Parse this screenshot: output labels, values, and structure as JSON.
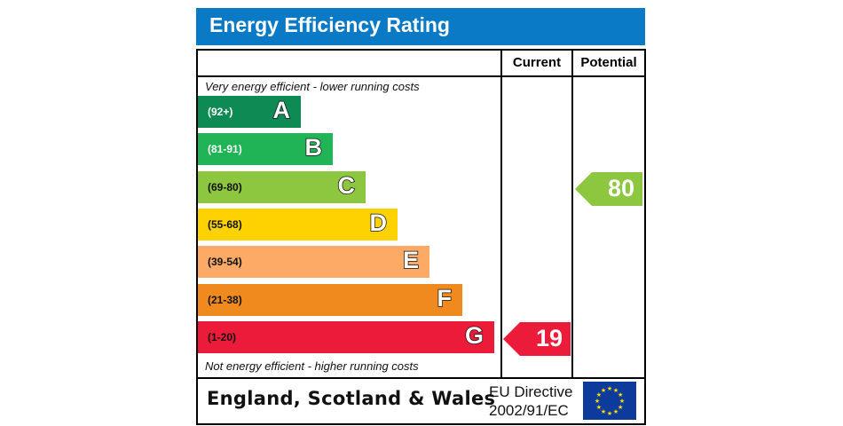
{
  "header": {
    "title": "Energy Efficiency Rating"
  },
  "columns": {
    "current": "Current",
    "potential": "Potential"
  },
  "captions": {
    "top": "Very energy efficient - lower running costs",
    "bottom": "Not energy efficient - higher running costs"
  },
  "footer": {
    "region": "England, Scotland & Wales",
    "directive_line1": "EU Directive",
    "directive_line2": "2002/91/EC",
    "flag_icon": "eu-flag-icon"
  },
  "chart_data": {
    "type": "bar",
    "title": "Energy Efficiency Rating",
    "categories": [
      "A",
      "B",
      "C",
      "D",
      "E",
      "F",
      "G"
    ],
    "bands": [
      {
        "letter": "A",
        "range": "(92+)",
        "min": 92,
        "max": 100,
        "color": "#0e8a55",
        "text_dark": false
      },
      {
        "letter": "B",
        "range": "(81-91)",
        "min": 81,
        "max": 91,
        "color": "#20b456",
        "text_dark": false
      },
      {
        "letter": "C",
        "range": "(69-80)",
        "min": 69,
        "max": 80,
        "color": "#8dc63f",
        "text_dark": true
      },
      {
        "letter": "D",
        "range": "(55-68)",
        "min": 55,
        "max": 68,
        "color": "#fdd200",
        "text_dark": true
      },
      {
        "letter": "E",
        "range": "(39-54)",
        "min": 39,
        "max": 54,
        "color": "#fcaa65",
        "text_dark": true
      },
      {
        "letter": "F",
        "range": "(21-38)",
        "min": 21,
        "max": 38,
        "color": "#f08a1f",
        "text_dark": true
      },
      {
        "letter": "G",
        "range": "(1-20)",
        "min": 1,
        "max": 20,
        "color": "#ed1b3a",
        "text_dark": true
      }
    ],
    "series": [
      {
        "name": "Current",
        "value": 19,
        "band": "G",
        "color": "#ed1b3a"
      },
      {
        "name": "Potential",
        "value": 80,
        "band": "C",
        "color": "#8dc63f"
      }
    ]
  }
}
